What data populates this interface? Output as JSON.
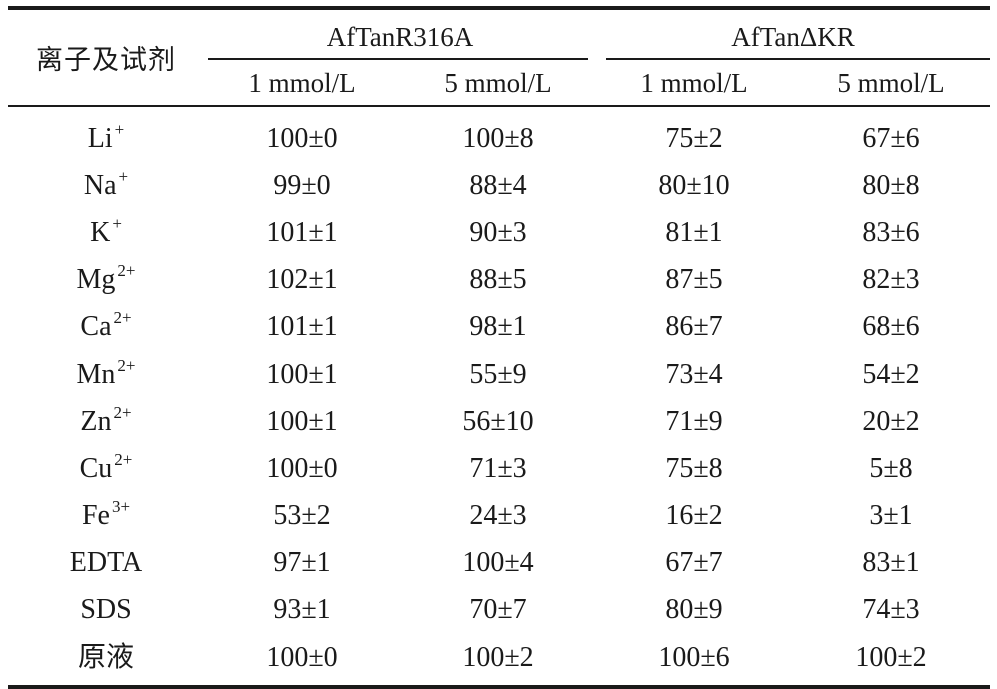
{
  "table": {
    "row_header": "离子及试剂",
    "groups": [
      {
        "label": "AfTanR316A",
        "sub": [
          "1 mmol/L",
          "5 mmol/L"
        ]
      },
      {
        "label": "AfTanΔKR",
        "sub": [
          "1 mmol/L",
          "5 mmol/L"
        ]
      }
    ],
    "rows": [
      {
        "base": "Li",
        "sup": "+",
        "v": [
          "100±0",
          "100±8",
          "75±2",
          "67±6"
        ]
      },
      {
        "base": "Na",
        "sup": "+",
        "v": [
          "99±0",
          "88±4",
          "80±10",
          "80±8"
        ]
      },
      {
        "base": "K",
        "sup": "+",
        "v": [
          "101±1",
          "90±3",
          "81±1",
          "83±6"
        ]
      },
      {
        "base": "Mg",
        "sup": "2+",
        "v": [
          "102±1",
          "88±5",
          "87±5",
          "82±3"
        ]
      },
      {
        "base": "Ca",
        "sup": "2+",
        "v": [
          "101±1",
          "98±1",
          "86±7",
          "68±6"
        ]
      },
      {
        "base": "Mn",
        "sup": "2+",
        "v": [
          "100±1",
          "55±9",
          "73±4",
          "54±2"
        ]
      },
      {
        "base": "Zn",
        "sup": "2+",
        "v": [
          "100±1",
          "56±10",
          "71±9",
          "20±2"
        ]
      },
      {
        "base": "Cu",
        "sup": "2+",
        "v": [
          "100±0",
          "71±3",
          "75±8",
          "5±8"
        ]
      },
      {
        "base": "Fe",
        "sup": "3+",
        "v": [
          "53±2",
          "24±3",
          "16±2",
          "3±1"
        ]
      },
      {
        "base": "EDTA",
        "sup": "",
        "v": [
          "97±1",
          "100±4",
          "67±7",
          "83±1"
        ]
      },
      {
        "base": "SDS",
        "sup": "",
        "v": [
          "93±1",
          "70±7",
          "80±9",
          "74±3"
        ]
      },
      {
        "base": "原液",
        "sup": "",
        "v": [
          "100±0",
          "100±2",
          "100±6",
          "100±2"
        ]
      }
    ]
  }
}
